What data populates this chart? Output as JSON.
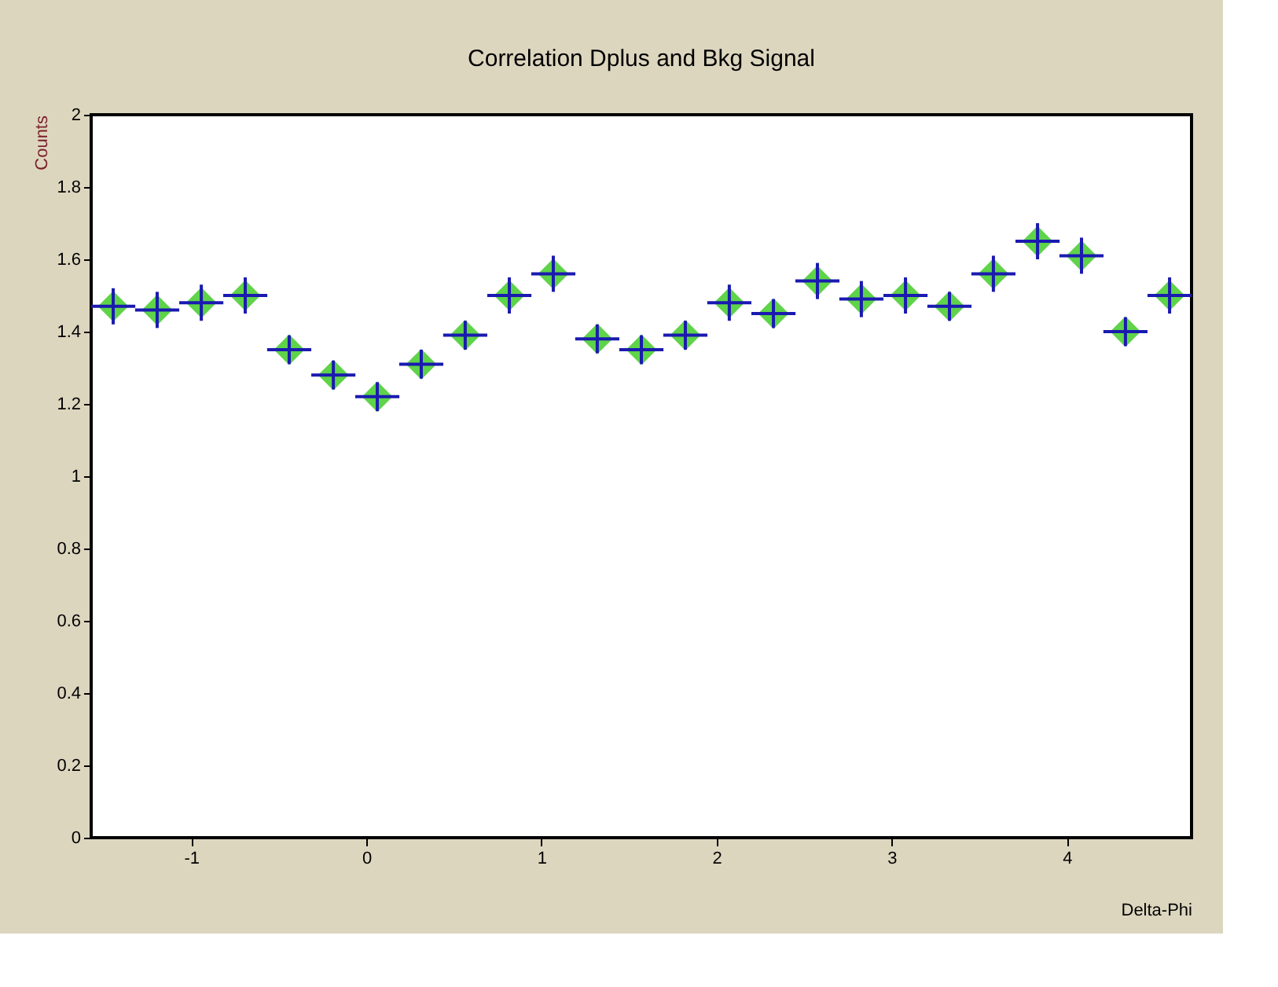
{
  "chart_data": {
    "type": "scatter",
    "title": "Correlation Dplus and Bkg Signal",
    "xlabel": "Delta-Phi",
    "ylabel": "Counts",
    "x": [
      -1.445,
      -1.194,
      -0.942,
      -0.691,
      -0.44,
      -0.188,
      0.063,
      0.314,
      0.565,
      0.817,
      1.068,
      1.319,
      1.571,
      1.822,
      2.073,
      2.325,
      2.576,
      2.827,
      3.079,
      3.33,
      3.581,
      3.833,
      4.084,
      4.335,
      4.587
    ],
    "series": [
      {
        "color": "#5fd34a",
        "values": [
          1.47,
          1.46,
          1.48,
          1.5,
          1.35,
          1.28,
          1.22,
          1.31,
          1.39,
          1.5,
          1.56,
          1.38,
          1.35,
          1.39,
          1.48,
          1.45,
          1.54,
          1.49,
          1.5,
          1.47,
          1.56,
          1.65,
          1.61,
          1.4,
          1.5
        ],
        "errors": [
          0.05,
          0.05,
          0.05,
          0.05,
          0.04,
          0.04,
          0.04,
          0.04,
          0.04,
          0.05,
          0.05,
          0.04,
          0.04,
          0.04,
          0.05,
          0.04,
          0.05,
          0.05,
          0.05,
          0.04,
          0.05,
          0.05,
          0.05,
          0.04,
          0.05
        ],
        "xerrors": [
          0.126,
          0.126,
          0.126,
          0.126,
          0.126,
          0.126,
          0.126,
          0.126,
          0.126,
          0.126,
          0.126,
          0.126,
          0.126,
          0.126,
          0.126,
          0.126,
          0.126,
          0.126,
          0.126,
          0.126,
          0.126,
          0.126,
          0.126,
          0.126,
          0.126
        ]
      }
    ],
    "xlim": [
      -1.5708,
      4.7124
    ],
    "xticks": [
      -1,
      0,
      1,
      2,
      3,
      4
    ],
    "ylim": [
      0,
      2
    ],
    "yticks": [
      0,
      0.2,
      0.4,
      0.6,
      0.8,
      1,
      1.2,
      1.4,
      1.6,
      1.8,
      2
    ],
    "marker": "diamond",
    "grid": false
  }
}
